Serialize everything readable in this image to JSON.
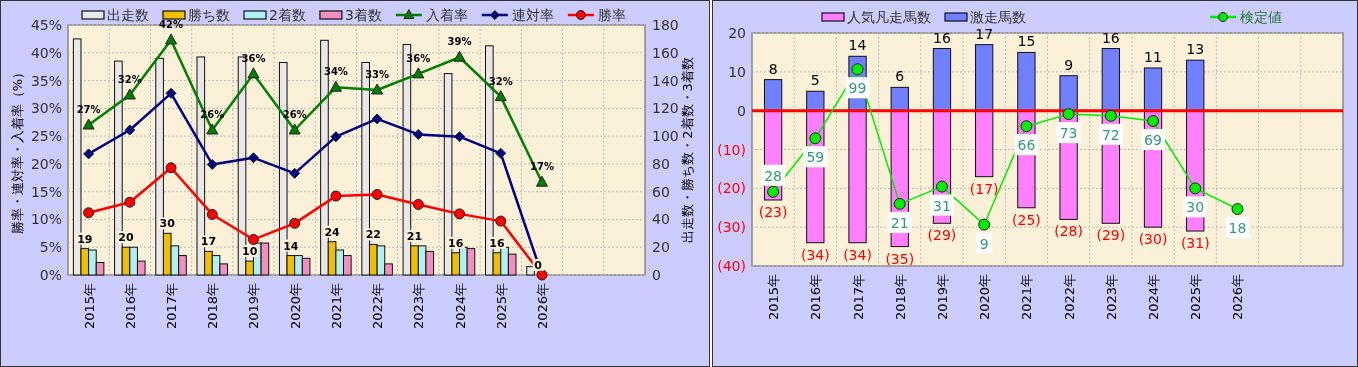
{
  "chart_data": [
    {
      "type": "bar",
      "categories": [
        "2015年",
        "2016年",
        "2017年",
        "2018年",
        "2019年",
        "2020年",
        "2021年",
        "2022年",
        "2023年",
        "2024年",
        "2025年",
        "2026年",
        null,
        null
      ],
      "ylabel": "勝率・連対率・入着率（%）",
      "y2label": "出走数・勝ち数・2着数・3着数",
      "ylim": [
        0,
        45
      ],
      "yticks": [
        {
          "value": 0,
          "label": "0%"
        },
        {
          "value": 5,
          "label": "5%"
        },
        {
          "value": 10,
          "label": "10%"
        },
        {
          "value": 15,
          "label": "15%"
        },
        {
          "value": 20,
          "label": "20%"
        },
        {
          "value": 25,
          "label": "25%"
        },
        {
          "value": 30,
          "label": "30%"
        },
        {
          "value": 35,
          "label": "35%"
        },
        {
          "value": 40,
          "label": "40%"
        },
        {
          "value": 45,
          "label": "45%"
        }
      ],
      "y2lim": [
        0,
        180
      ],
      "y2ticks": [
        0,
        20,
        40,
        60,
        80,
        100,
        120,
        140,
        160,
        180
      ],
      "grid": true,
      "legend": "top",
      "series": [
        {
          "name": "出走数",
          "color": "#e8e8e8",
          "axis": "y2",
          "values": [
            170,
            154,
            156,
            157,
            157,
            153,
            169,
            153,
            166,
            145,
            165,
            6,
            null,
            null
          ]
        },
        {
          "name": "勝ち数",
          "color": "#f0c000",
          "axis": "y2",
          "values": [
            19,
            20,
            30,
            17,
            10,
            14,
            24,
            22,
            21,
            16,
            16,
            0,
            null,
            null
          ],
          "value_labels": [
            "19",
            "20",
            "30",
            "17",
            "10",
            "14",
            "24",
            "22",
            "21",
            "16",
            "16",
            "0",
            null,
            null
          ]
        },
        {
          "name": "2着数",
          "color": "#b0f0f0",
          "axis": "y2",
          "values": [
            18,
            20,
            21,
            14,
            23,
            14,
            18,
            21,
            21,
            20,
            20,
            0,
            null,
            null
          ]
        },
        {
          "name": "3着数",
          "color": "#f090c0",
          "axis": "y2",
          "values": [
            9,
            10,
            14,
            8,
            23,
            12,
            14,
            8,
            17,
            19,
            15,
            0,
            null,
            null
          ]
        },
        {
          "name": "入着率",
          "type": "line",
          "color": "#008000",
          "marker": "triangle",
          "values": [
            27.0,
            32.4,
            42.3,
            26.1,
            36.2,
            26.1,
            33.8,
            33.3,
            36.2,
            39.2,
            32.1,
            16.7,
            null,
            null
          ],
          "value_labels": [
            "27%",
            "32%",
            "42%",
            "26%",
            "36%",
            "26%",
            "34%",
            "33%",
            "36%",
            "39%",
            "32%",
            "17%",
            null,
            null
          ]
        },
        {
          "name": "連対率",
          "type": "line",
          "color": "#000080",
          "marker": "diamond",
          "values": [
            21.8,
            26.1,
            32.7,
            19.9,
            21.1,
            18.3,
            24.9,
            28.1,
            25.3,
            24.9,
            21.9,
            0,
            null,
            null
          ]
        },
        {
          "name": "勝率",
          "type": "line",
          "color": "#ff0000",
          "marker": "circle",
          "values": [
            11.2,
            13.1,
            19.3,
            10.9,
            6.4,
            9.3,
            14.2,
            14.5,
            12.7,
            11.0,
            9.7,
            0,
            null,
            null
          ]
        }
      ]
    },
    {
      "type": "bar",
      "stacked": true,
      "categories": [
        "2015年",
        "2016年",
        "2017年",
        "2018年",
        "2019年",
        "2020年",
        "2021年",
        "2022年",
        "2023年",
        "2024年",
        "2025年",
        "2026年",
        null,
        null
      ],
      "ylim": [
        -40,
        20
      ],
      "yticks": [
        20,
        10,
        0,
        {
          "value": -10,
          "label": "(10)"
        },
        {
          "value": -20,
          "label": "(20)"
        },
        {
          "value": -30,
          "label": "(30)"
        },
        {
          "value": -40,
          "label": "(40)"
        }
      ],
      "y2lim": [
        -15,
        120
      ],
      "grid": true,
      "legend": "top",
      "ref_lines": [
        {
          "axis": "y",
          "value": 0,
          "color": "#ff0000"
        }
      ],
      "series": [
        {
          "name": "人気凡走馬数",
          "color": "#ff80ff",
          "values": [
            -23,
            -34,
            -34,
            -35,
            -29,
            -17,
            -25,
            -28,
            -29,
            -30,
            -31,
            null,
            null,
            null
          ],
          "value_labels": [
            "(23)",
            "(34)",
            "(34)",
            "(35)",
            "(29)",
            "(17)",
            "(25)",
            "(28)",
            "(29)",
            "(30)",
            "(31)",
            null,
            null,
            null
          ]
        },
        {
          "name": "激走馬数",
          "color": "#7080ff",
          "values": [
            8,
            5,
            14,
            6,
            16,
            17,
            15,
            9,
            16,
            11,
            13,
            null,
            null,
            null
          ],
          "value_labels": [
            "8",
            "5",
            "14",
            "6",
            "16",
            "17",
            "15",
            "9",
            "16",
            "11",
            "13",
            null,
            null,
            null
          ]
        },
        {
          "name": "検定値",
          "type": "line",
          "axis": "y2",
          "color": "#00ee00",
          "marker": "circle",
          "values": [
            28,
            59,
            99,
            21,
            31,
            9,
            66,
            73,
            72,
            69,
            30,
            18,
            null,
            null
          ],
          "value_labels": [
            "28",
            "59",
            "99",
            "21",
            "31",
            "9",
            "66",
            "73",
            "72",
            "69",
            "30",
            "18",
            null,
            null
          ]
        }
      ]
    }
  ]
}
